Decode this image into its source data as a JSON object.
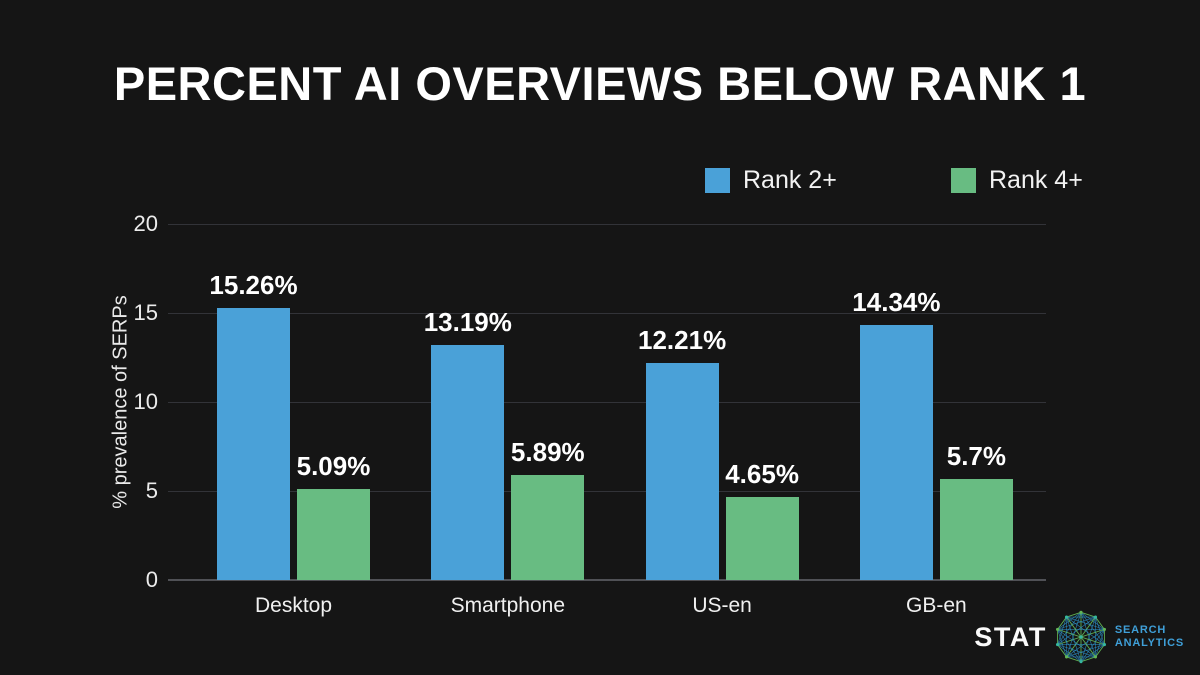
{
  "colors": {
    "background": "#151515",
    "blue": "#4aa1d8",
    "green": "#68bc82",
    "grid": "#323338",
    "axis": "#505156",
    "text": "#f5f5f5"
  },
  "chart_data": {
    "type": "bar",
    "title": "PERCENT AI OVERVIEWS BELOW RANK 1",
    "categories": [
      "Desktop",
      "Smartphone",
      "US-en",
      "GB-en"
    ],
    "series": [
      {
        "name": "Rank 2+",
        "color": "#4aa1d8",
        "values": [
          15.26,
          13.19,
          12.21,
          14.34
        ],
        "value_labels": [
          "15.26%",
          "13.19%",
          "12.21%",
          "14.34%"
        ]
      },
      {
        "name": "Rank 4+",
        "color": "#68bc82",
        "values": [
          5.09,
          5.89,
          4.65,
          5.7
        ],
        "value_labels": [
          "5.09%",
          "5.89%",
          "4.65%",
          "5.7%"
        ]
      }
    ],
    "xlabel": "",
    "ylabel": "% prevalence of SERPs",
    "ylim": [
      0,
      20
    ],
    "yticks": [
      0,
      5,
      10,
      15,
      20
    ],
    "grid": true,
    "legend_position": "top-right"
  },
  "legend": {
    "items": [
      {
        "label": "Rank 2+",
        "color": "#4aa1d8"
      },
      {
        "label": "Rank 4+",
        "color": "#68bc82"
      }
    ]
  },
  "logo": {
    "brand": "STAT",
    "tagline": [
      "SEARCH",
      "ANALYTICS"
    ],
    "icon": "network-sphere-icon",
    "brand_color": "#fafafa",
    "tagline_color": "#3f9fd8",
    "icon_blue": "#2f9bd6",
    "icon_green": "#62b656",
    "icon_teal": "#35b8a0"
  }
}
